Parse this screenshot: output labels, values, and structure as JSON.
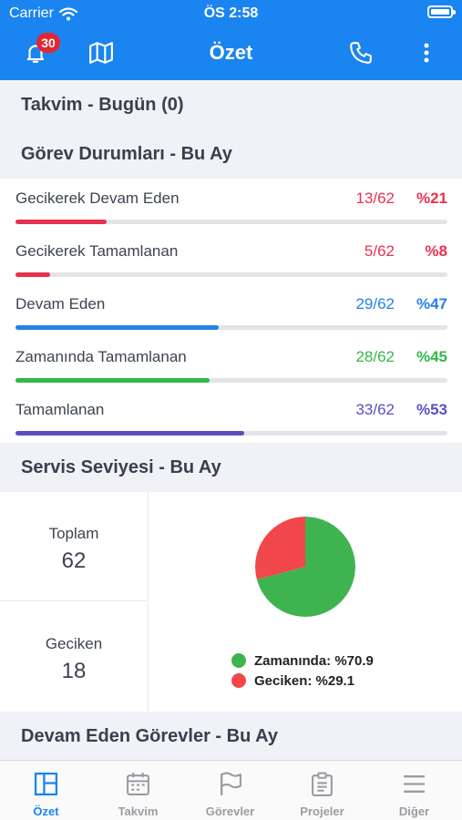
{
  "status_bar": {
    "carrier": "Carrier",
    "time": "ÖS 2:58"
  },
  "header": {
    "title": "Özet",
    "notification_count": "30"
  },
  "calendar_section": {
    "title": "Takvim - Bugün (0)"
  },
  "task_status_section": {
    "title": "Görev Durumları - Bu Ay",
    "items": [
      {
        "label": "Gecikerek Devam Eden",
        "count": "13/62",
        "percent": "%21",
        "value": 0.21,
        "color": "#e6314f"
      },
      {
        "label": "Gecikerek Tamamlanan",
        "count": "5/62",
        "percent": "%8",
        "value": 0.08,
        "color": "#e6314f"
      },
      {
        "label": "Devam Eden",
        "count": "29/62",
        "percent": "%47",
        "value": 0.47,
        "color": "#2680ea"
      },
      {
        "label": "Zamanında Tamamlanan",
        "count": "28/62",
        "percent": "%45",
        "value": 0.45,
        "color": "#33b84a"
      },
      {
        "label": "Tamamlanan",
        "count": "33/62",
        "percent": "%53",
        "value": 0.53,
        "color": "#5a4ec6"
      }
    ]
  },
  "service_section": {
    "title": "Servis Seviyesi - Bu Ay",
    "total_label": "Toplam",
    "total_value": "62",
    "late_label": "Geciken",
    "late_value": "18"
  },
  "chart_data": {
    "type": "pie",
    "slices": [
      {
        "label": "Zamanında: %70.9",
        "value": 70.9,
        "color": "#3fb34f"
      },
      {
        "label": "Geciken: %29.1",
        "value": 29.1,
        "color": "#f1474b"
      }
    ],
    "legend": "bottom"
  },
  "ongoing_section": {
    "title": "Devam Eden Görevler - Bu Ay"
  },
  "tabs": [
    {
      "label": "Özet",
      "icon": "summary-icon",
      "active": true
    },
    {
      "label": "Takvim",
      "icon": "calendar-icon",
      "active": false
    },
    {
      "label": "Görevler",
      "icon": "flag-icon",
      "active": false
    },
    {
      "label": "Projeler",
      "icon": "clipboard-icon",
      "active": false
    },
    {
      "label": "Diğer",
      "icon": "menu-icon",
      "active": false
    }
  ],
  "colors": {
    "accent": "#1a84f0",
    "inactive_tab": "#9a9ca3"
  }
}
